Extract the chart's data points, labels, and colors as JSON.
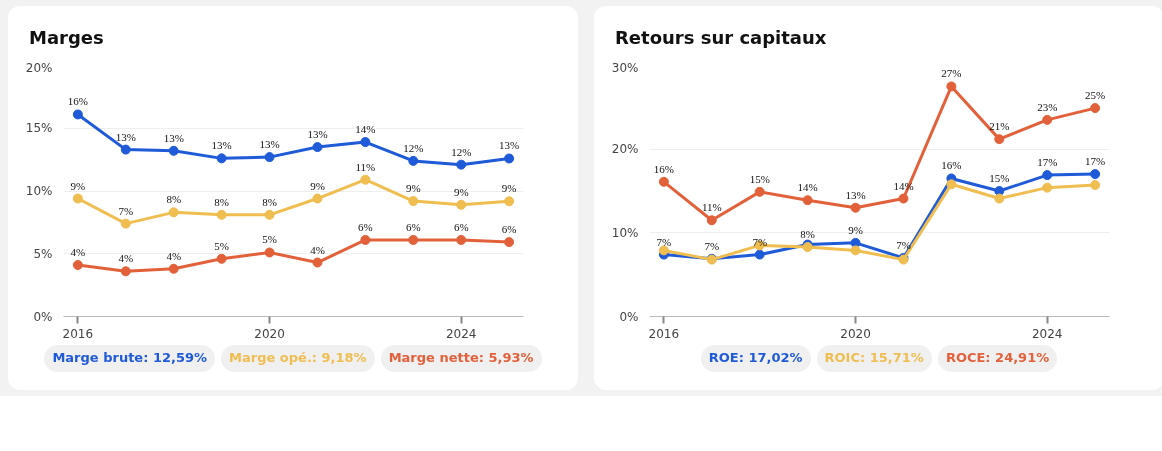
{
  "chart_data": [
    {
      "type": "line",
      "title": "Marges",
      "x": [
        2016,
        2017,
        2018,
        2019,
        2020,
        2021,
        2022,
        2023,
        2024,
        2025
      ],
      "xlim": [
        2015.7,
        2025.3
      ],
      "xticks": [
        2016,
        2020,
        2024
      ],
      "ylim": [
        0,
        20
      ],
      "yticks": [
        {
          "value": 0,
          "label": "0%"
        },
        {
          "value": 5,
          "label": "5%"
        },
        {
          "value": 10,
          "label": "10%"
        },
        {
          "value": 15,
          "label": "15%"
        },
        {
          "value": 20,
          "label": "20%"
        }
      ],
      "grid": "y",
      "legend": "bottom",
      "marker": "circle",
      "line_style": "solid",
      "series": [
        {
          "name": "Marge brute: 12,59%",
          "color": "#1f5ad8",
          "values": [
            16.1,
            13.3,
            13.2,
            12.6,
            12.7,
            13.5,
            13.9,
            12.4,
            12.1,
            12.59
          ],
          "value_labels": [
            "16%",
            "13%",
            "13%",
            "13%",
            "13%",
            "13%",
            "14%",
            "12%",
            "12%",
            "13%"
          ]
        },
        {
          "name": "Marge opé.: 9,18%",
          "color": "#efbd50",
          "values": [
            9.4,
            7.4,
            8.3,
            8.1,
            8.1,
            9.4,
            10.9,
            9.2,
            8.9,
            9.18
          ],
          "value_labels": [
            "9%",
            "7%",
            "8%",
            "8%",
            "8%",
            "9%",
            "11%",
            "9%",
            "9%",
            "9%"
          ]
        },
        {
          "name": "Marge nette: 5,93%",
          "color": "#e2613a",
          "values": [
            4.1,
            3.6,
            3.8,
            4.6,
            5.1,
            4.3,
            6.1,
            6.1,
            6.1,
            5.93
          ],
          "value_labels": [
            "4%",
            "4%",
            "4%",
            "5%",
            "5%",
            "4%",
            "6%",
            "6%",
            "6%",
            "6%"
          ]
        }
      ]
    },
    {
      "type": "line",
      "title": "Retours sur capitaux",
      "x": [
        2016,
        2017,
        2018,
        2019,
        2020,
        2021,
        2022,
        2023,
        2024,
        2025
      ],
      "xlim": [
        2015.7,
        2025.3
      ],
      "xticks": [
        2016,
        2020,
        2024
      ],
      "ylim": [
        0,
        30
      ],
      "yticks": [
        {
          "value": 0,
          "label": "0%"
        },
        {
          "value": 10,
          "label": "10%"
        },
        {
          "value": 20,
          "label": "20%"
        },
        {
          "value": 30,
          "label": "30%"
        }
      ],
      "grid": "y",
      "legend": "bottom",
      "marker": "circle",
      "line_style": "solid",
      "series": [
        {
          "name": "ROE: 17,02%",
          "color": "#1f5ad8",
          "values": [
            7.4,
            6.9,
            7.4,
            8.6,
            8.8,
            7.0,
            16.5,
            15.0,
            16.9,
            17.02
          ],
          "value_labels": [
            "7%",
            "7%",
            "7%",
            null,
            "9%",
            "7%",
            "16%",
            "15%",
            "17%",
            "17%"
          ]
        },
        {
          "name": "ROIC: 15,71%",
          "color": "#efbd50",
          "values": [
            7.9,
            6.8,
            8.5,
            8.3,
            7.9,
            6.8,
            15.8,
            14.1,
            15.4,
            15.71
          ],
          "value_labels": [
            null,
            null,
            null,
            "8%",
            null,
            null,
            null,
            null,
            null,
            null
          ]
        },
        {
          "name": "ROCE: 24,91%",
          "color": "#e2613a",
          "values": [
            16.1,
            11.5,
            14.9,
            13.9,
            13.0,
            14.1,
            27.5,
            21.2,
            23.5,
            24.91
          ],
          "value_labels": [
            "16%",
            "11%",
            "15%",
            "14%",
            "13%",
            "14%",
            "27%",
            "21%",
            "23%",
            "25%"
          ]
        }
      ]
    }
  ]
}
